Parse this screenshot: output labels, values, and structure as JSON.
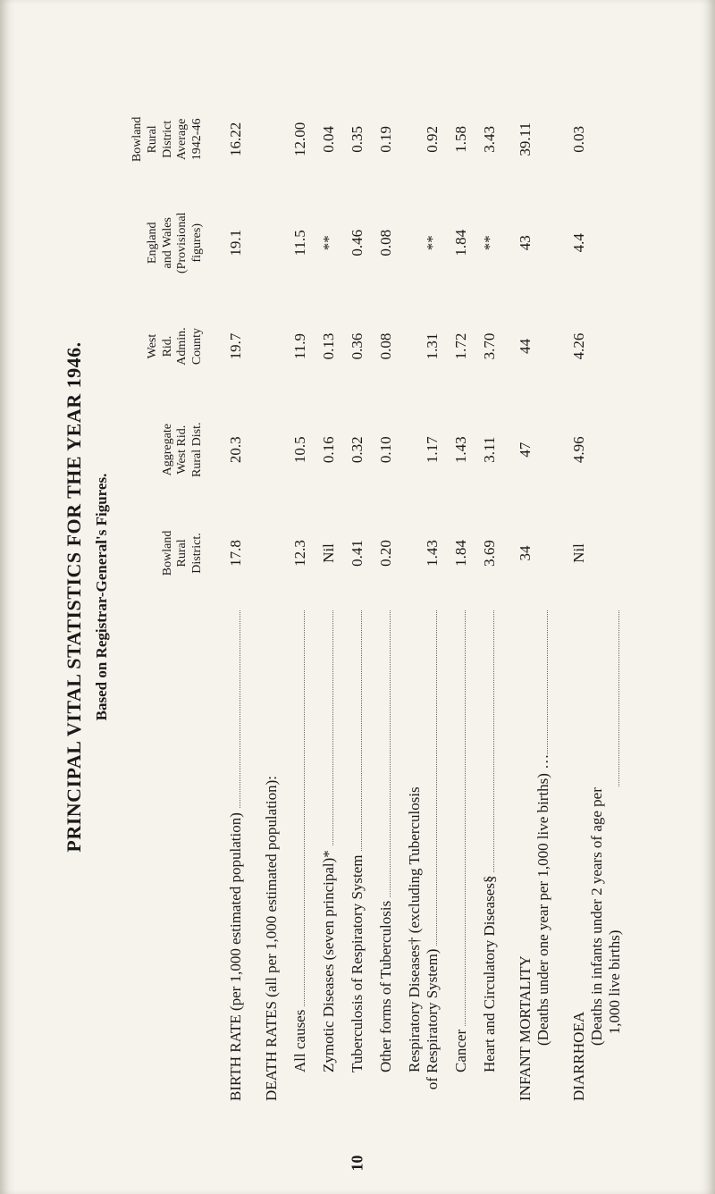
{
  "title": "PRINCIPAL VITAL STATISTICS FOR THE YEAR 1946.",
  "subtitle": "Based on Registrar-General's Figures.",
  "page_number": "10",
  "columns": [
    "Bowland\nRural\nDistrict.",
    "Aggregate\nWest Rid.\nRural Dist.",
    "West\nRid.\nAdmin.\nCounty",
    "England\nand Wales\n(Provisional\nfigures)",
    "Bowland\nRural\nDistrict\nAverage\n1942-46"
  ],
  "rows": [
    {
      "label": "BIRTH RATE (per 1,000 estimated population)",
      "vals": [
        "17.8",
        "20.3",
        "19.7",
        "19.1",
        "16.22"
      ],
      "style": "plain"
    },
    {
      "label": "DEATH RATES (all per 1,000 estimated population):",
      "vals": [
        "",
        "",
        "",
        "",
        ""
      ],
      "style": "plainhead"
    },
    {
      "label": "All causes",
      "vals": [
        "12.3",
        "10.5",
        "11.9",
        "11.5",
        "12.00"
      ],
      "style": "indent1"
    },
    {
      "label": "Zymotic Diseases (seven principal)*",
      "vals": [
        "Nil",
        "0.16",
        "0.13",
        "**",
        "0.04"
      ],
      "style": "indent1"
    },
    {
      "label": "Tuberculosis of Respiratory System",
      "vals": [
        "0.41",
        "0.32",
        "0.36",
        "0.46",
        "0.35"
      ],
      "style": "indent1"
    },
    {
      "label": "Other forms of Tuberculosis",
      "vals": [
        "0.20",
        "0.10",
        "0.08",
        "0.08",
        "0.19"
      ],
      "style": "indent1"
    },
    {
      "label": "Respiratory Diseases† (excluding Tuberculosis\n   of Respiratory System)",
      "vals": [
        "1.43",
        "1.17",
        "1.31",
        "**",
        "0.92"
      ],
      "style": "indent1"
    },
    {
      "label": "Cancer",
      "vals": [
        "1.84",
        "1.43",
        "1.72",
        "1.84",
        "1.58"
      ],
      "style": "indent1"
    },
    {
      "label": "Heart and Circulatory Diseases§",
      "vals": [
        "3.69",
        "3.11",
        "3.70",
        "**",
        "3.43"
      ],
      "style": "indent1"
    },
    {
      "label": "INFANT MORTALITY",
      "sub": "(Deaths under one year per 1,000 live births) …",
      "vals": [
        "34",
        "47",
        "44",
        "43",
        "39.11"
      ],
      "style": "two"
    },
    {
      "label": "DIARRHOEA",
      "sub": "(Deaths in infants under 2 years of age per\n   1,000 live births)",
      "vals": [
        "Nil",
        "4.96",
        "4.26",
        "4.4",
        "0.03"
      ],
      "style": "two"
    }
  ],
  "colors": {
    "bg": "#f6f3ec",
    "text": "#1a1a1a",
    "dots": "#6a6a6a"
  },
  "fontsizes": {
    "title": 22,
    "subtitle": 17,
    "body": 17,
    "header": 14
  }
}
